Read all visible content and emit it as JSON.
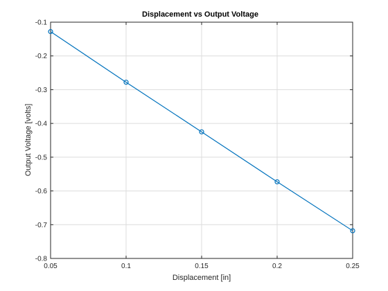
{
  "chart_data": {
    "type": "line",
    "title": "Displacement vs Output Voltage",
    "xlabel": "Displacement [in]",
    "ylabel": "Output Voltage [volts]",
    "xlim": [
      0.05,
      0.25
    ],
    "ylim": [
      -0.8,
      -0.1
    ],
    "xticks": [
      0.05,
      0.1,
      0.15,
      0.2,
      0.25
    ],
    "xtick_labels": [
      "0.05",
      "0.1",
      "0.15",
      "0.2",
      "0.25"
    ],
    "yticks": [
      -0.8,
      -0.7,
      -0.6,
      -0.5,
      -0.4,
      -0.3,
      -0.2,
      -0.1
    ],
    "ytick_labels": [
      "-0.8",
      "-0.7",
      "-0.6",
      "-0.5",
      "-0.4",
      "-0.3",
      "-0.2",
      "-0.1"
    ],
    "grid": true,
    "marker": "circle",
    "line_color": "#0072bd",
    "x": [
      0.05,
      0.1,
      0.15,
      0.2,
      0.25
    ],
    "series": [
      {
        "values": [
          -0.128,
          -0.278,
          -0.425,
          -0.573,
          -0.718
        ]
      }
    ]
  }
}
